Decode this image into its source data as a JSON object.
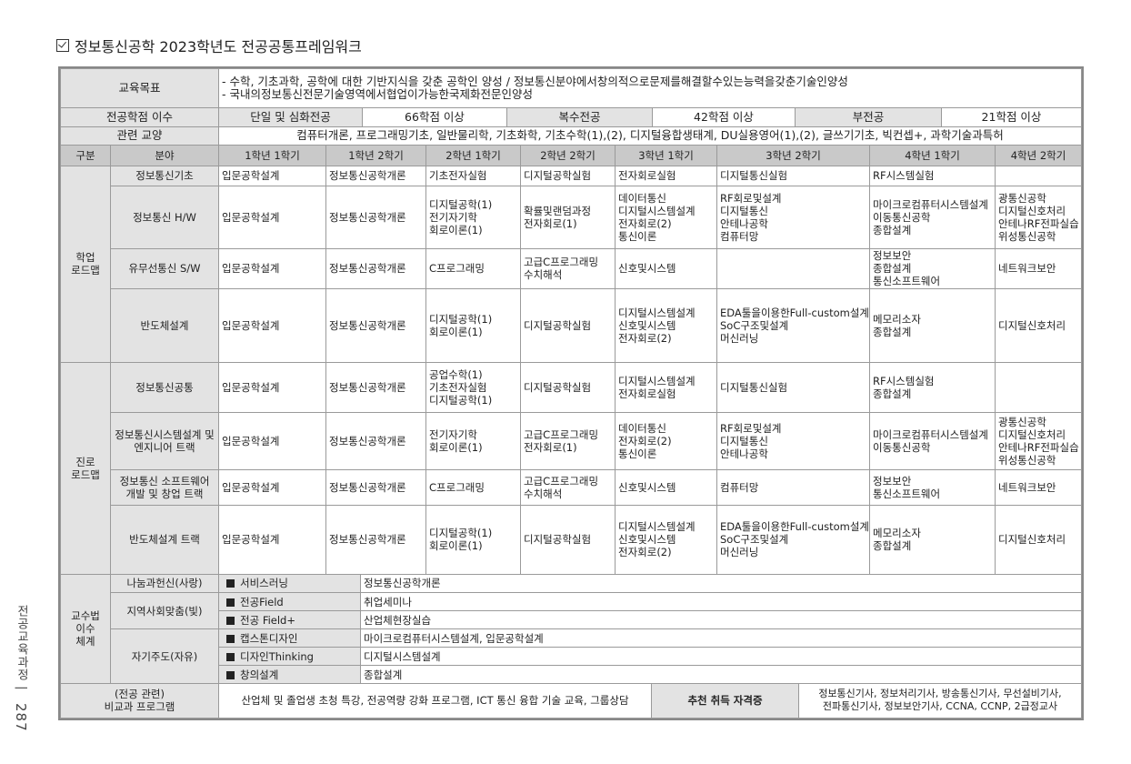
{
  "page_title": "정보통신공학 2023학년도 전공공통프레임워크",
  "side": {
    "label": "전공교육과정",
    "page_number": "287"
  },
  "goal": {
    "label": "교육목표",
    "lines": [
      "- 수학, 기초과학, 공학에 대한 기반지식을 갖춘 공학인 양성 / 정보통신분야에서창의적으로문제를해결할수있는능력을갖춘기술인양성",
      "- 국내의정보통신전문기술영역에서협업이가능한국제화전문인양성"
    ]
  },
  "credits": {
    "label": "전공학점 이수",
    "items": [
      {
        "type": "단일 및 심화전공",
        "value": "66학점 이상"
      },
      {
        "type": "복수전공",
        "value": "42학점 이상"
      },
      {
        "type": "부전공",
        "value": "21학점 이상"
      }
    ]
  },
  "liberal": {
    "label": "관련 교양",
    "value": "컴퓨터개론, 프로그래밍기초, 일반물리학, 기초화학, 기초수학(1),(2), 디지털융합생태계, DU실용영어(1),(2), 글쓰기기초, 빅컨셉+, 과학기술과특허"
  },
  "roadmap": {
    "headers": [
      "구분",
      "분야",
      "1학년 1학기",
      "1학년 2학기",
      "2학년 1학기",
      "2학년 2학기",
      "3학년 1학기",
      "3학년 2학기",
      "4학년 1학기",
      "4학년 2학기"
    ],
    "groups": [
      {
        "name": "학업\n로드맵",
        "rows": [
          {
            "field": "정보통신기초",
            "cells": [
              [
                "입문공학설계"
              ],
              [
                "정보통신공학개론"
              ],
              [
                "기초전자실험"
              ],
              [
                "디지털공학실험"
              ],
              [
                "전자회로실험"
              ],
              [
                "디지털통신실험"
              ],
              [
                "RF시스템실험"
              ],
              []
            ]
          },
          {
            "field": "정보통신 H/W",
            "cells": [
              [
                "입문공학설계"
              ],
              [
                "정보통신공학개론"
              ],
              [
                "디지털공학(1)",
                "전기자기학",
                "회로이론(1)"
              ],
              [
                "확률및랜덤과정",
                "전자회로(1)"
              ],
              [
                "데이터통신",
                "디지털시스템설계",
                "전자회로(2)",
                "통신이론"
              ],
              [
                "RF회로및설계",
                "디지털통신",
                "안테나공학",
                "컴퓨터망"
              ],
              [
                "마이크로컴퓨터시스템설계",
                "이동통신공학",
                "종합설계"
              ],
              [
                "광통신공학",
                "디지털신호처리",
                "안테나RF전파실습",
                "위성통신공학"
              ]
            ]
          },
          {
            "field": "유무선통신 S/W",
            "cells": [
              [
                "입문공학설계"
              ],
              [
                "정보통신공학개론"
              ],
              [
                "C프로그래밍"
              ],
              [
                "고급C프로그래밍",
                "수치해석"
              ],
              [
                "신호및시스템"
              ],
              [],
              [
                "정보보안",
                "종합설계",
                "통신소프트웨어"
              ],
              [
                "네트워크보안"
              ]
            ]
          },
          {
            "field": "반도체설계",
            "cells": [
              [
                "입문공학설계"
              ],
              [
                "정보통신공학개론"
              ],
              [
                "디지털공학(1)",
                "회로이론(1)"
              ],
              [
                "디지털공학실험"
              ],
              [
                "디지털시스템설계",
                "신호및시스템",
                "전자회로(2)"
              ],
              [
                "EDA툴을이용한Full-custom설계",
                "SoC구조및설계",
                "머신러닝"
              ],
              [
                "메모리소자",
                "종합설계"
              ],
              [
                "디지털신호처리"
              ]
            ]
          }
        ]
      },
      {
        "name": "진로\n로드맵",
        "rows": [
          {
            "field": "정보통신공통",
            "cells": [
              [
                "입문공학설계"
              ],
              [
                "정보통신공학개론"
              ],
              [
                "공업수학(1)",
                "기초전자실험",
                "디지털공학(1)"
              ],
              [
                "디지털공학실험"
              ],
              [
                "디지털시스템설계",
                "전자회로실험"
              ],
              [
                "디지털통신실험"
              ],
              [
                "RF시스템실험",
                "종합설계"
              ],
              []
            ]
          },
          {
            "field": "정보통신시스템설계 및\n엔지니어 트랙",
            "cells": [
              [
                "입문공학설계"
              ],
              [
                "정보통신공학개론"
              ],
              [
                "전기자기학",
                "회로이론(1)"
              ],
              [
                "고급C프로그래밍",
                "전자회로(1)"
              ],
              [
                "데이터통신",
                "전자회로(2)",
                "통신이론"
              ],
              [
                "RF회로및설계",
                "디지털통신",
                "안테나공학"
              ],
              [
                "마이크로컴퓨터시스템설계",
                "이동통신공학"
              ],
              [
                "광통신공학",
                "디지털신호처리",
                "안테나RF전파실습",
                "위성통신공학"
              ]
            ]
          },
          {
            "field": "정보통신 소프트웨어\n개발 및 창업 트랙",
            "cells": [
              [
                "입문공학설계"
              ],
              [
                "정보통신공학개론"
              ],
              [
                "C프로그래밍"
              ],
              [
                "고급C프로그래밍",
                "수치해석"
              ],
              [
                "신호및시스템"
              ],
              [
                "컴퓨터망"
              ],
              [
                "정보보안",
                "통신소프트웨어"
              ],
              [
                "네트워크보안"
              ]
            ]
          },
          {
            "field": "반도체설계 트랙",
            "cells": [
              [
                "입문공학설계"
              ],
              [
                "정보통신공학개론"
              ],
              [
                "디지털공학(1)",
                "회로이론(1)"
              ],
              [
                "디지털공학실험"
              ],
              [
                "디지털시스템설계",
                "신호및시스템",
                "전자회로(2)"
              ],
              [
                "EDA툴을이용한Full-custom설계",
                "SoC구조및설계",
                "머신러닝"
              ],
              [
                "메모리소자",
                "종합설계"
              ],
              [
                "디지털신호처리"
              ]
            ]
          }
        ]
      }
    ]
  },
  "pedagogy": {
    "label": "교수법\n이수\n체계",
    "categories": [
      {
        "name": "나눔과헌신(사랑)",
        "items": [
          {
            "method": "서비스러닝",
            "courses": "정보통신공학개론"
          }
        ]
      },
      {
        "name": "지역사회맞춤(빛)",
        "items": [
          {
            "method": "전공Field",
            "courses": "취업세미나"
          },
          {
            "method": "전공 Field+",
            "courses": "산업체현장실습"
          }
        ]
      },
      {
        "name": "자기주도(자유)",
        "items": [
          {
            "method": "캡스톤디자인",
            "courses": "마이크로컴퓨터시스템설계, 입문공학설계"
          },
          {
            "method": "디자인Thinking",
            "courses": "디지털시스템설계"
          },
          {
            "method": "창의설계",
            "courses": "종합설계"
          }
        ]
      }
    ]
  },
  "extra": {
    "label": "(전공 관련)\n비교과 프로그램",
    "value": "산업체 및 졸업생 초청 특강, 전공역량 강화 프로그램, ICT 통신 융합 기술 교육, 그룹상담",
    "cert_label": "추천 취득 자격증",
    "cert_value": "정보통신기사, 정보처리기사, 방송통신기사, 무선설비기사,\n전파통신기사, 정보보안기사, CCNA, CCNP, 2급정교사"
  }
}
